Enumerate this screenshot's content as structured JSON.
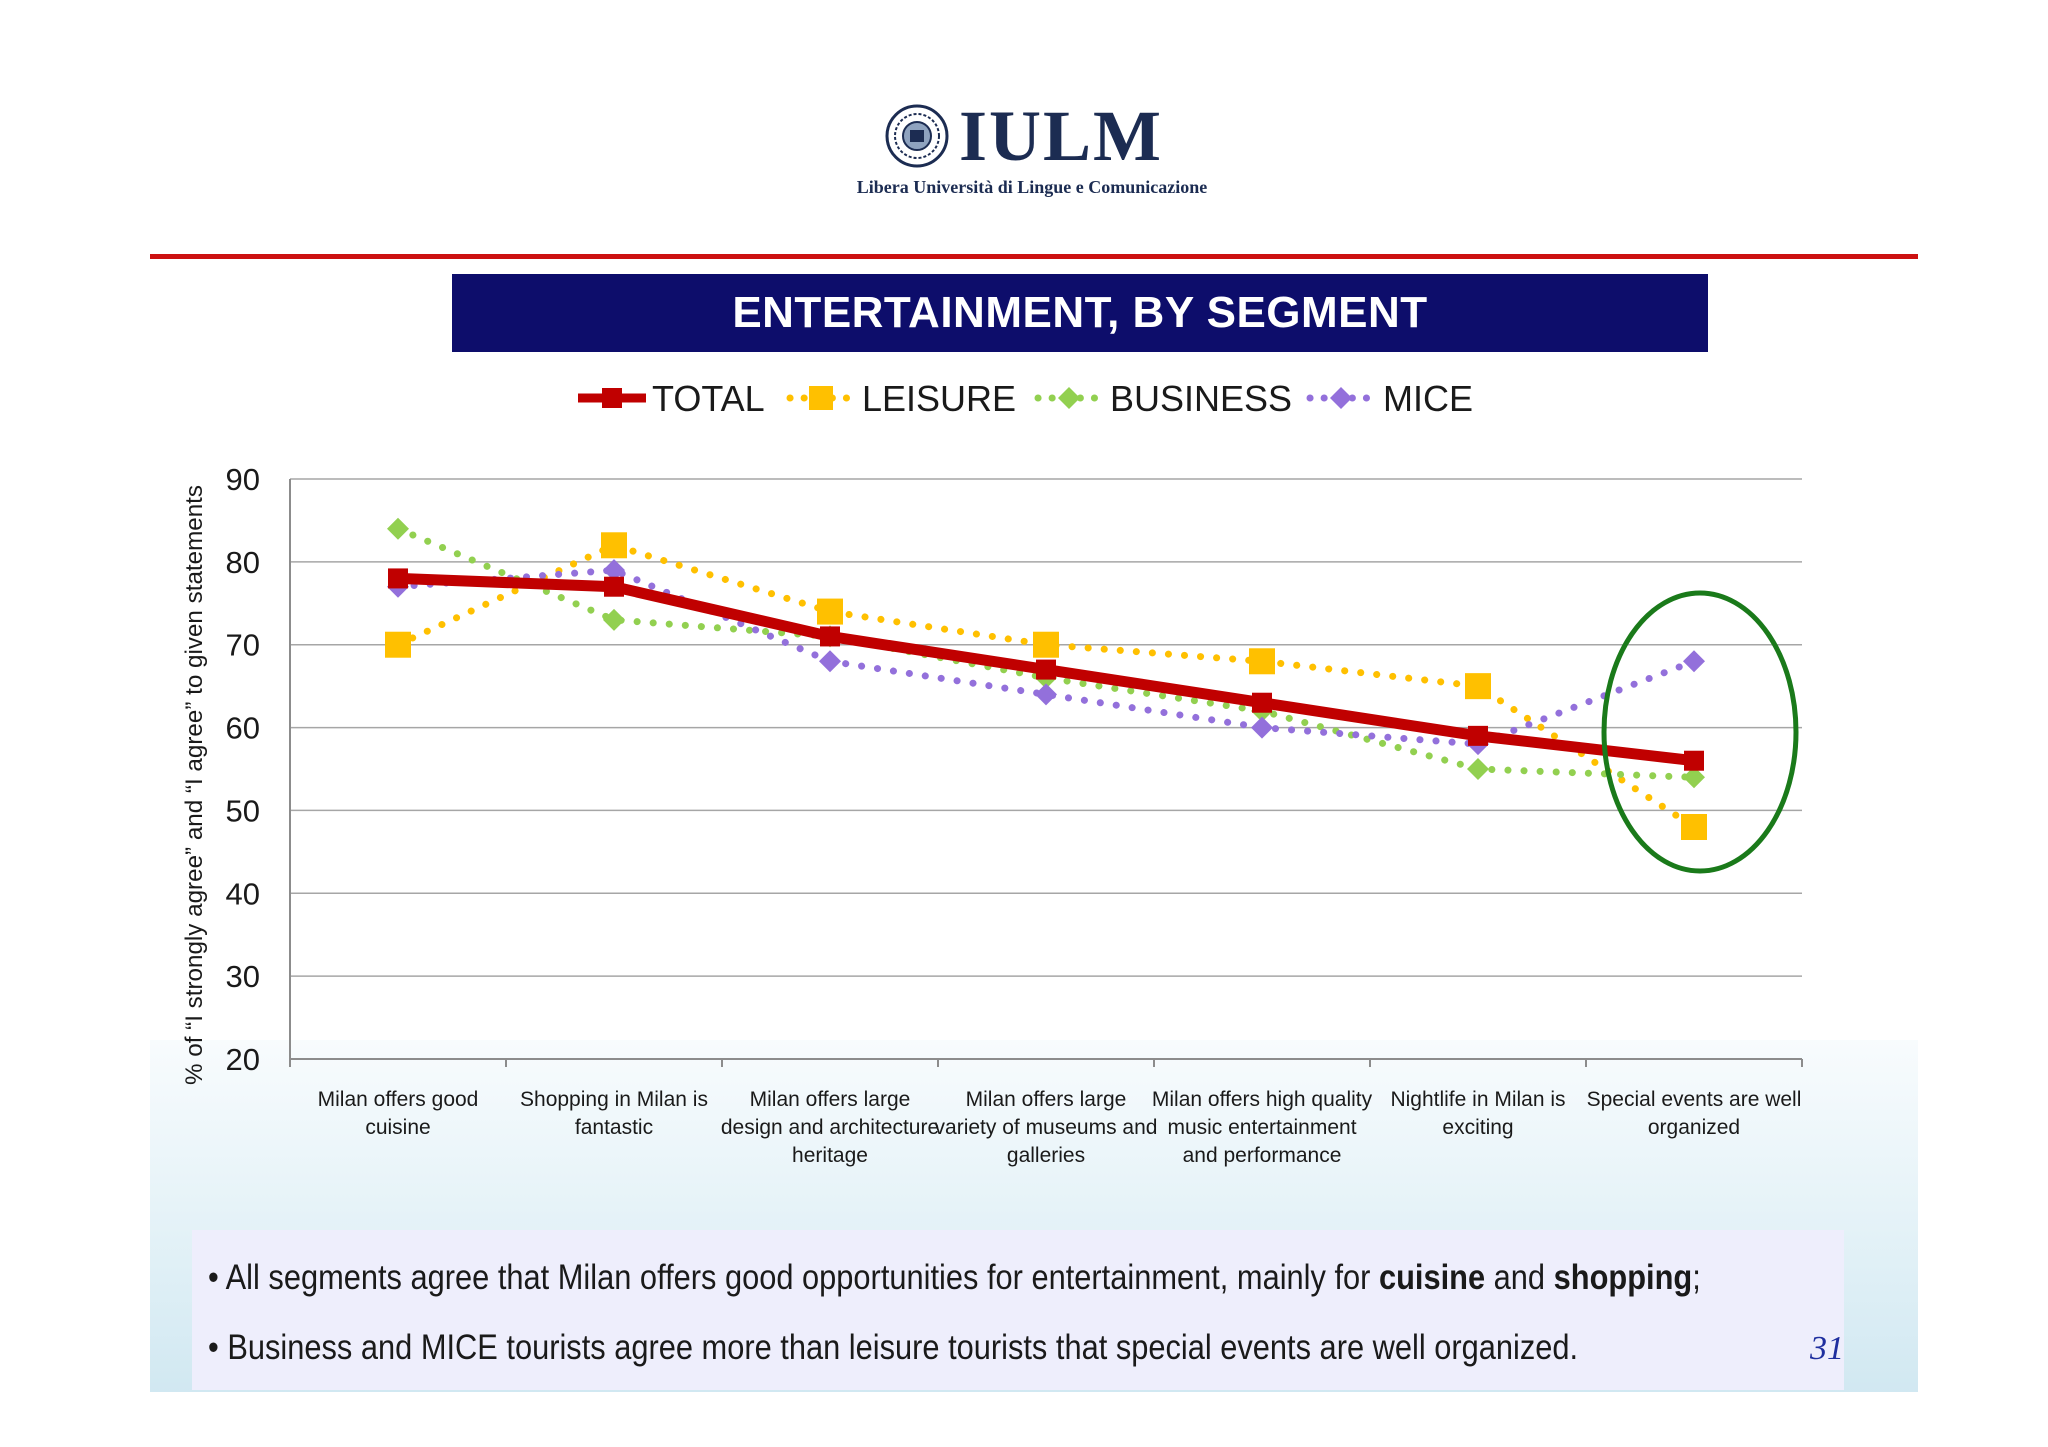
{
  "logo": {
    "name": "IULM",
    "subtitle": "Libera Università di Lingue e Comunicazione"
  },
  "title": "ENTERTAINMENT, BY SEGMENT",
  "colors": {
    "total": "#c00000",
    "leisure": "#ffc000",
    "business": "#92d050",
    "mice": "#9370db",
    "banner": "#0d0d6b",
    "rule": "#cc1111",
    "highlight": "#1a7a1a"
  },
  "chart_data": {
    "type": "line",
    "ylabel": "% of “I strongly agree” and “I agree” to given statements",
    "ylim": [
      20,
      90
    ],
    "yticks": [
      20,
      30,
      40,
      50,
      60,
      70,
      80,
      90
    ],
    "grid": true,
    "legend_position": "top",
    "categories": [
      "Milan offers good cuisine",
      "Shopping in Milan is fantastic",
      "Milan offers large design and architecture heritage",
      "Milan offers large variety of museums and galleries",
      "Milan offers high quality music entertainment and performance",
      "Nightlife in Milan is exciting",
      "Special events are well organized"
    ],
    "category_lines": [
      [
        "Milan offers good",
        "cuisine"
      ],
      [
        "Shopping in Milan is",
        "fantastic"
      ],
      [
        "Milan offers large",
        "design and architecture",
        "heritage"
      ],
      [
        "Milan offers large",
        "variety of museums and",
        "galleries"
      ],
      [
        "Milan offers high quality",
        "music entertainment",
        "and performance"
      ],
      [
        "Nightlife in Milan is",
        "exciting"
      ],
      [
        "Special events are well",
        "organized"
      ]
    ],
    "series": [
      {
        "name": "TOTAL",
        "style": "solid",
        "marker": "square",
        "values": [
          78,
          77,
          71,
          67,
          63,
          59,
          56
        ]
      },
      {
        "name": "LEISURE",
        "style": "dotted",
        "marker": "square",
        "values": [
          70,
          82,
          74,
          70,
          68,
          65,
          48
        ]
      },
      {
        "name": "BUSINESS",
        "style": "dotted",
        "marker": "diamond",
        "values": [
          84,
          73,
          71,
          66,
          62,
          55,
          54
        ]
      },
      {
        "name": "MICE",
        "style": "dotted",
        "marker": "diamond",
        "values": [
          77,
          79,
          68,
          64,
          60,
          58,
          68
        ]
      }
    ],
    "annotation": {
      "type": "ellipse",
      "category_index": 6
    }
  },
  "bullets": [
    [
      "All segments agree that Milan offers good opportunities for entertainment, mainly for ",
      "cuisine",
      " and ",
      "shopping",
      ";"
    ],
    [
      "Business and MICE tourists agree more than leisure tourists that special events are well organized."
    ]
  ],
  "page_number": "31"
}
